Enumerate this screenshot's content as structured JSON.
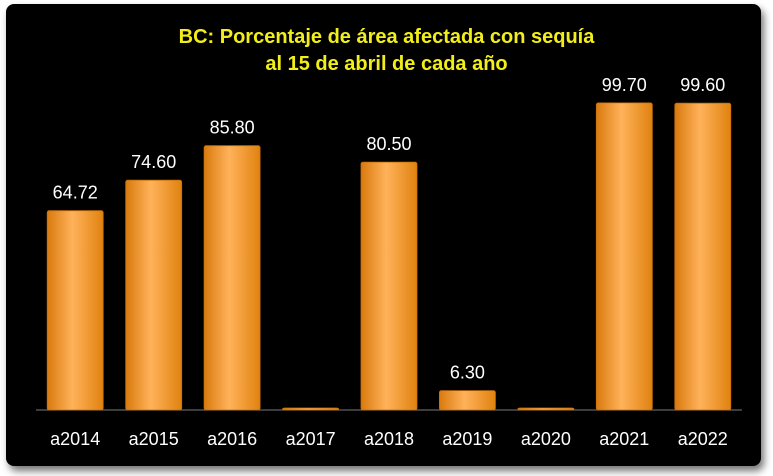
{
  "chart_data": {
    "type": "bar",
    "title_lines": [
      "BC: Porcentaje de área afectada con sequía",
      "al 15 de abril de cada año"
    ],
    "categories": [
      "a2014",
      "a2015",
      "a2016",
      "a2017",
      "a2018",
      "a2019",
      "a2020",
      "a2021",
      "a2022"
    ],
    "values": [
      64.72,
      74.6,
      85.8,
      0,
      80.5,
      6.3,
      0,
      99.7,
      99.6
    ],
    "data_labels": [
      "64.72",
      "74.60",
      "85.80",
      "",
      "80.50",
      "6.30",
      "",
      "99.70",
      "99.60"
    ],
    "xlabel": "",
    "ylabel": "",
    "ylim": [
      0,
      100
    ],
    "grid": false,
    "legend": "none",
    "colors": {
      "background": "#000000",
      "bar_light": "#ffb860",
      "bar_mid": "#f7931e",
      "bar_dark": "#d97a0e",
      "title": "#f2ee1a",
      "labels": "#ffffff"
    }
  }
}
